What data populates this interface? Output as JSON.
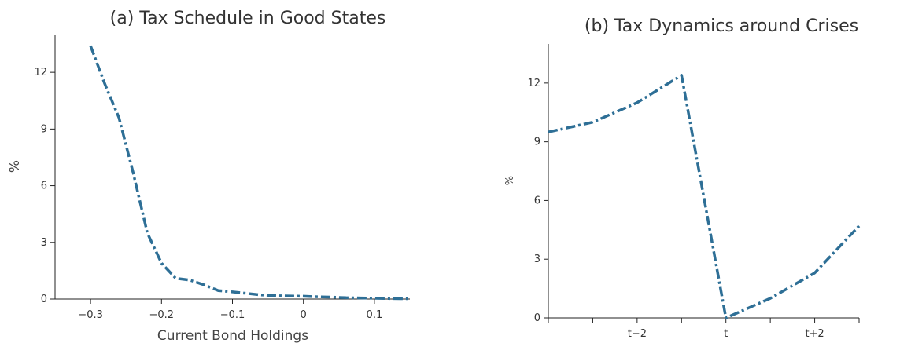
{
  "chart_data": [
    {
      "type": "line",
      "title": "(a) Tax Schedule in Good States",
      "xlabel": "Current Bond Holdings",
      "ylabel": "%",
      "xlim": [
        -0.35,
        0.15
      ],
      "ylim": [
        0,
        14
      ],
      "xticks": [
        -0.3,
        -0.2,
        -0.1,
        0,
        0.1
      ],
      "xtick_labels": [
        "−0.3",
        "−0.2",
        "−0.1",
        "0",
        "0.1"
      ],
      "yticks": [
        0,
        3,
        6,
        9,
        12
      ],
      "ytick_labels": [
        "0",
        "3",
        "6",
        "9",
        "12"
      ],
      "grid": false,
      "series": [
        {
          "color": "#2e6f96",
          "style": "dash-dot",
          "x": [
            -0.3,
            -0.28,
            -0.26,
            -0.24,
            -0.22,
            -0.2,
            -0.18,
            -0.16,
            -0.14,
            -0.12,
            -0.1,
            -0.08,
            -0.06,
            -0.04,
            -0.02,
            0,
            0.02,
            0.04,
            0.06,
            0.08,
            0.1,
            0.12,
            0.14,
            0.15
          ],
          "y": [
            13.4,
            11.4,
            9.6,
            6.7,
            3.5,
            1.9,
            1.1,
            1.0,
            0.75,
            0.45,
            0.38,
            0.3,
            0.22,
            0.18,
            0.16,
            0.15,
            0.12,
            0.1,
            0.07,
            0.06,
            0.04,
            0.03,
            0.02,
            0.02
          ]
        }
      ]
    },
    {
      "type": "line",
      "title": "(b) Tax Dynamics around Crises",
      "xlabel": "",
      "ylabel": "%",
      "xlim": [
        -4,
        3
      ],
      "ylim": [
        0,
        14
      ],
      "xticks": [
        -4,
        -3,
        -2,
        -1,
        0,
        1,
        2,
        3
      ],
      "xtick_labels": [
        "",
        "",
        "t−2",
        "",
        "t",
        "",
        "t+2",
        ""
      ],
      "yticks": [
        0,
        3,
        6,
        9,
        12
      ],
      "ytick_labels": [
        "0",
        "3",
        "6",
        "9",
        "12"
      ],
      "grid": false,
      "series": [
        {
          "color": "#2e6f96",
          "style": "dash-dot",
          "x": [
            -4,
            -3,
            -2,
            -1,
            0,
            1,
            2,
            3
          ],
          "y": [
            9.5,
            10.0,
            11.0,
            12.4,
            0.0,
            1.0,
            2.3,
            4.7
          ]
        }
      ]
    }
  ]
}
